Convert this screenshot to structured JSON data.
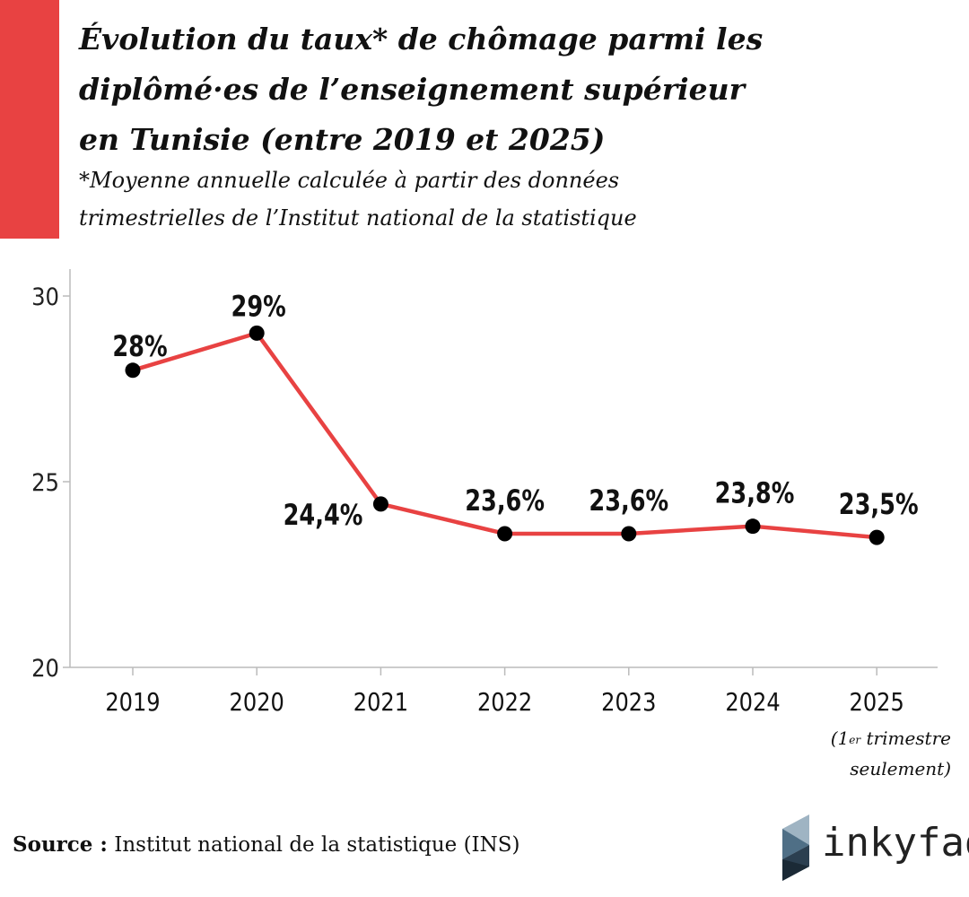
{
  "header": {
    "title_lines": [
      "Évolution du taux* de chômage parmi les",
      "diplômé·es de l’enseignement supérieur",
      "en Tunisie (entre 2019 et 2025)"
    ],
    "subtitle_lines": [
      "*Moyenne annuelle calculée à partir des données",
      "trimestrielles de l’Institut national de la statistique"
    ]
  },
  "chart_data": {
    "type": "line",
    "x": [
      "2019",
      "2020",
      "2021",
      "2022",
      "2023",
      "2024",
      "2025"
    ],
    "values": [
      28,
      29,
      24.4,
      23.6,
      23.6,
      23.8,
      23.5
    ],
    "data_labels": [
      "28%",
      "29%",
      "24,4%",
      "23,6%",
      "23,6%",
      "23,8%",
      "23,5%"
    ],
    "y_ticks": [
      "20",
      "25",
      "30"
    ],
    "y_tick_values": [
      20,
      25,
      30
    ],
    "ylim": [
      20,
      30
    ],
    "grid": false,
    "line_color": "#e84242",
    "marker_color": "#000000"
  },
  "note": {
    "lead": "(1",
    "sup": "er",
    "rest": " trimestre",
    "line2": "seulement)"
  },
  "source": {
    "label": "Source :",
    "text": "Institut national de la statistique (INS)"
  },
  "logo": {
    "text": "inkyfada",
    "icon": "inkyfada-logo-icon"
  },
  "colors": {
    "accent": "#e84242",
    "text": "#111111",
    "axis": "#bbbbbb"
  }
}
